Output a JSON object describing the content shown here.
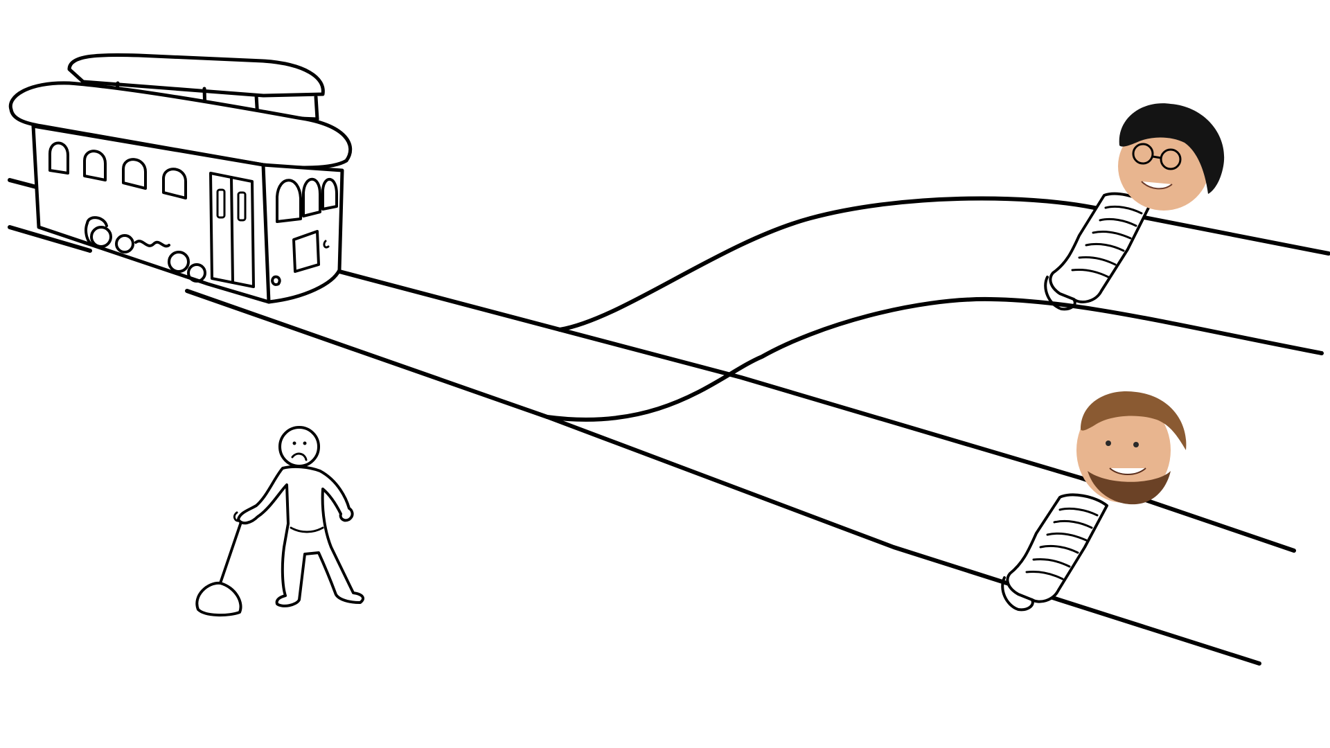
{
  "scene": {
    "background_color": "#ffffff",
    "line_color": "#000000",
    "skin_color": "#e8b58f",
    "hair_color_1": "#141414",
    "hair_color_2": "#8a5a32"
  },
  "icons": {
    "trolley": "trolley-icon",
    "lever_person": "person-pulling-lever-icon",
    "lever": "lever-icon",
    "tied_victim_upper": "tied-person-icon",
    "tied_victim_lower": "tied-person-icon"
  }
}
